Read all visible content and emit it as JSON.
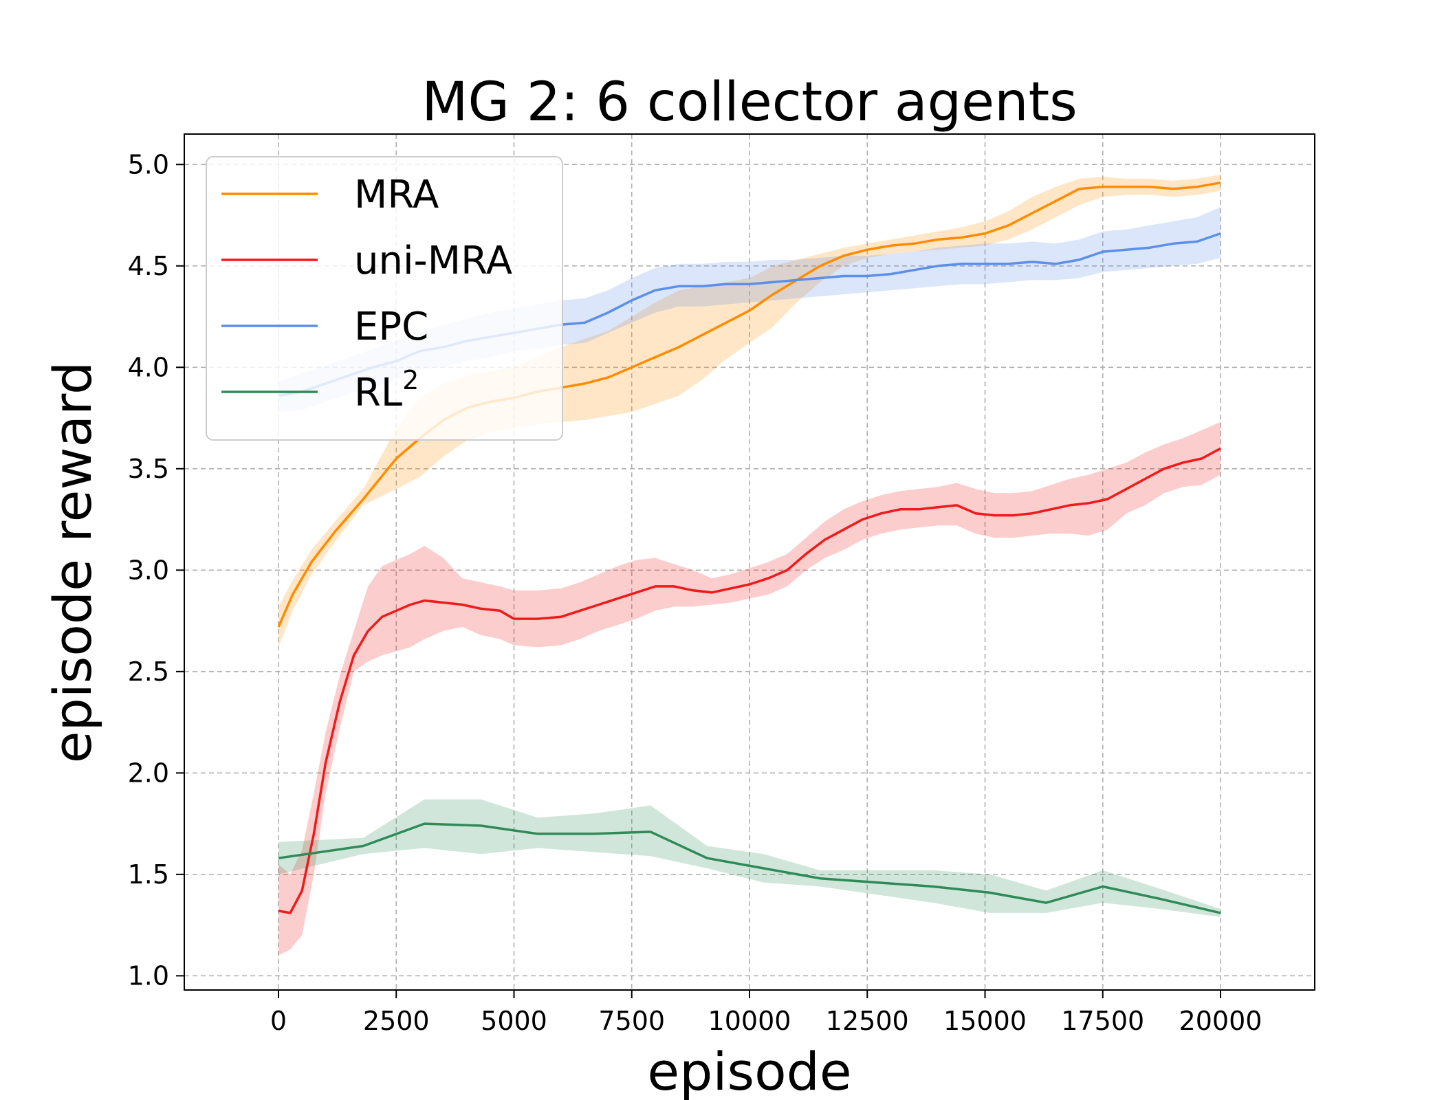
{
  "chart_data": {
    "type": "line",
    "title": "MG 2: 6 collector agents",
    "xlabel": "episode",
    "ylabel": "episode reward",
    "xlim": [
      -2000,
      22000
    ],
    "ylim": [
      0.93,
      5.15
    ],
    "xticks": [
      0,
      2500,
      5000,
      7500,
      10000,
      12500,
      15000,
      17500,
      20000
    ],
    "xtick_labels": [
      "0",
      "2500",
      "5000",
      "7500",
      "10000",
      "12500",
      "15000",
      "17500",
      "20000"
    ],
    "yticks": [
      1.0,
      1.5,
      2.0,
      2.5,
      3.0,
      3.5,
      4.0,
      4.5,
      5.0
    ],
    "ytick_labels": [
      "1.0",
      "1.5",
      "2.0",
      "2.5",
      "3.0",
      "3.5",
      "4.0",
      "4.5",
      "5.0"
    ],
    "grid": true,
    "legend_position": "top-left",
    "series": [
      {
        "name": "MRA",
        "color": "#ff8c00",
        "x": [
          0,
          300,
          700,
          1200,
          1800,
          2500,
          3000,
          3500,
          4000,
          4500,
          5000,
          5500,
          6000,
          6500,
          7000,
          7500,
          8000,
          8500,
          9000,
          9500,
          10000,
          10500,
          11000,
          11500,
          12000,
          12500,
          13000,
          13500,
          14000,
          14500,
          15000,
          15500,
          16000,
          16500,
          17000,
          17500,
          18000,
          18500,
          19000,
          19500,
          20000
        ],
        "values": [
          2.72,
          2.88,
          3.04,
          3.19,
          3.35,
          3.55,
          3.65,
          3.74,
          3.8,
          3.83,
          3.85,
          3.88,
          3.9,
          3.92,
          3.95,
          4.0,
          4.05,
          4.1,
          4.16,
          4.22,
          4.28,
          4.36,
          4.43,
          4.5,
          4.55,
          4.58,
          4.6,
          4.61,
          4.63,
          4.64,
          4.66,
          4.7,
          4.76,
          4.82,
          4.88,
          4.89,
          4.89,
          4.89,
          4.88,
          4.89,
          4.91
        ],
        "lower": [
          2.62,
          2.8,
          2.98,
          3.14,
          3.32,
          3.4,
          3.46,
          3.56,
          3.64,
          3.68,
          3.7,
          3.72,
          3.73,
          3.74,
          3.76,
          3.78,
          3.82,
          3.86,
          3.94,
          4.04,
          4.12,
          4.2,
          4.32,
          4.42,
          4.5,
          4.54,
          4.56,
          4.57,
          4.58,
          4.59,
          4.6,
          4.63,
          4.68,
          4.74,
          4.8,
          4.84,
          4.85,
          4.85,
          4.84,
          4.85,
          4.87
        ],
        "upper": [
          2.82,
          2.95,
          3.1,
          3.24,
          3.4,
          3.7,
          3.85,
          3.92,
          3.96,
          3.98,
          4.0,
          4.05,
          4.1,
          4.14,
          4.18,
          4.25,
          4.32,
          4.38,
          4.4,
          4.42,
          4.44,
          4.5,
          4.53,
          4.56,
          4.59,
          4.61,
          4.63,
          4.65,
          4.67,
          4.69,
          4.72,
          4.77,
          4.84,
          4.89,
          4.93,
          4.94,
          4.93,
          4.93,
          4.92,
          4.93,
          4.95
        ]
      },
      {
        "name": "uni-MRA",
        "color": "#f01a1a",
        "x": [
          0,
          250,
          500,
          750,
          1000,
          1300,
          1600,
          1900,
          2200,
          2500,
          2800,
          3100,
          3500,
          3900,
          4300,
          4700,
          5000,
          5500,
          6000,
          6400,
          6800,
          7200,
          7600,
          8000,
          8400,
          8800,
          9200,
          9600,
          10000,
          10400,
          10800,
          11200,
          11600,
          12000,
          12400,
          12800,
          13200,
          13600,
          14000,
          14400,
          14800,
          15200,
          15600,
          16000,
          16400,
          16800,
          17200,
          17600,
          18000,
          18400,
          18800,
          19200,
          19600,
          20000
        ],
        "values": [
          1.32,
          1.31,
          1.42,
          1.7,
          2.05,
          2.35,
          2.58,
          2.7,
          2.77,
          2.8,
          2.83,
          2.85,
          2.84,
          2.83,
          2.81,
          2.8,
          2.76,
          2.76,
          2.77,
          2.8,
          2.83,
          2.86,
          2.89,
          2.92,
          2.92,
          2.9,
          2.89,
          2.91,
          2.93,
          2.96,
          3.0,
          3.08,
          3.15,
          3.2,
          3.25,
          3.28,
          3.3,
          3.3,
          3.31,
          3.32,
          3.28,
          3.27,
          3.27,
          3.28,
          3.3,
          3.32,
          3.33,
          3.35,
          3.4,
          3.45,
          3.5,
          3.53,
          3.55,
          3.6
        ],
        "lower": [
          1.1,
          1.13,
          1.2,
          1.5,
          1.9,
          2.22,
          2.5,
          2.55,
          2.58,
          2.6,
          2.62,
          2.66,
          2.7,
          2.72,
          2.68,
          2.66,
          2.63,
          2.62,
          2.63,
          2.66,
          2.7,
          2.73,
          2.76,
          2.8,
          2.82,
          2.82,
          2.83,
          2.84,
          2.86,
          2.88,
          2.92,
          3.0,
          3.06,
          3.1,
          3.15,
          3.18,
          3.2,
          3.21,
          3.22,
          3.22,
          3.18,
          3.16,
          3.16,
          3.17,
          3.18,
          3.18,
          3.17,
          3.2,
          3.28,
          3.32,
          3.38,
          3.41,
          3.42,
          3.47
        ],
        "upper": [
          1.55,
          1.5,
          1.62,
          1.9,
          2.2,
          2.48,
          2.7,
          2.92,
          3.02,
          3.05,
          3.08,
          3.12,
          3.06,
          2.96,
          2.94,
          2.92,
          2.9,
          2.9,
          2.91,
          2.94,
          2.98,
          3.02,
          3.05,
          3.06,
          3.03,
          3.0,
          2.96,
          2.98,
          3.01,
          3.04,
          3.08,
          3.16,
          3.24,
          3.3,
          3.34,
          3.37,
          3.39,
          3.4,
          3.41,
          3.43,
          3.4,
          3.38,
          3.38,
          3.39,
          3.42,
          3.45,
          3.47,
          3.5,
          3.53,
          3.58,
          3.62,
          3.65,
          3.69,
          3.73
        ]
      },
      {
        "name": "EPC",
        "color": "#5b8fe8",
        "x": [
          0,
          500,
          1000,
          1500,
          2000,
          2500,
          3000,
          3500,
          4000,
          4500,
          5000,
          5500,
          6000,
          6500,
          7000,
          7500,
          8000,
          8500,
          9000,
          9500,
          10000,
          10500,
          11000,
          11500,
          12000,
          12500,
          13000,
          13500,
          14000,
          14500,
          15000,
          15500,
          16000,
          16500,
          17000,
          17500,
          18000,
          18500,
          19000,
          19500,
          20000
        ],
        "values": [
          3.86,
          3.88,
          3.92,
          3.96,
          4.0,
          4.03,
          4.08,
          4.1,
          4.13,
          4.15,
          4.17,
          4.19,
          4.21,
          4.22,
          4.27,
          4.33,
          4.38,
          4.4,
          4.4,
          4.41,
          4.41,
          4.42,
          4.43,
          4.44,
          4.45,
          4.45,
          4.46,
          4.48,
          4.5,
          4.51,
          4.51,
          4.51,
          4.52,
          4.51,
          4.53,
          4.57,
          4.58,
          4.59,
          4.61,
          4.62,
          4.66
        ],
        "lower": [
          3.78,
          3.79,
          3.83,
          3.87,
          3.9,
          3.94,
          3.99,
          4.0,
          4.03,
          4.05,
          4.08,
          4.09,
          4.11,
          4.12,
          4.17,
          4.22,
          4.27,
          4.3,
          4.3,
          4.31,
          4.32,
          4.33,
          4.34,
          4.35,
          4.36,
          4.37,
          4.38,
          4.39,
          4.4,
          4.41,
          4.41,
          4.42,
          4.43,
          4.43,
          4.44,
          4.47,
          4.48,
          4.49,
          4.5,
          4.51,
          4.54
        ],
        "upper": [
          3.93,
          3.97,
          4.01,
          4.05,
          4.09,
          4.13,
          4.17,
          4.21,
          4.24,
          4.27,
          4.29,
          4.31,
          4.33,
          4.34,
          4.38,
          4.44,
          4.49,
          4.51,
          4.51,
          4.52,
          4.52,
          4.53,
          4.53,
          4.54,
          4.55,
          4.55,
          4.56,
          4.57,
          4.59,
          4.6,
          4.61,
          4.61,
          4.62,
          4.61,
          4.63,
          4.67,
          4.68,
          4.7,
          4.72,
          4.74,
          4.79
        ]
      },
      {
        "name": "RL2",
        "color": "#2e8b57",
        "x": [
          0,
          1800,
          3100,
          4300,
          5500,
          6700,
          7900,
          9100,
          10300,
          11500,
          12700,
          13900,
          15100,
          16300,
          17500,
          18700,
          20000
        ],
        "values": [
          1.58,
          1.64,
          1.75,
          1.74,
          1.7,
          1.7,
          1.71,
          1.58,
          1.53,
          1.48,
          1.46,
          1.44,
          1.41,
          1.36,
          1.44,
          1.38,
          1.31
        ],
        "lower": [
          1.5,
          1.6,
          1.63,
          1.6,
          1.63,
          1.61,
          1.59,
          1.53,
          1.46,
          1.44,
          1.4,
          1.36,
          1.31,
          1.31,
          1.36,
          1.33,
          1.29
        ],
        "upper": [
          1.66,
          1.68,
          1.87,
          1.87,
          1.78,
          1.8,
          1.84,
          1.64,
          1.6,
          1.52,
          1.52,
          1.52,
          1.5,
          1.42,
          1.52,
          1.43,
          1.33
        ]
      }
    ],
    "legend": [
      {
        "label": "MRA",
        "series": 0
      },
      {
        "label": "uni-MRA",
        "series": 1
      },
      {
        "label": "EPC",
        "series": 2
      },
      {
        "label": "RL",
        "superscript": "2",
        "series": 3
      }
    ]
  }
}
